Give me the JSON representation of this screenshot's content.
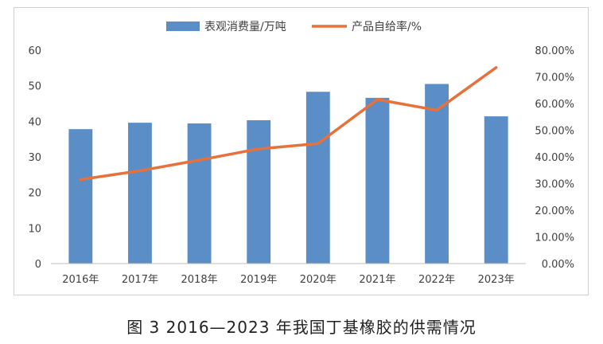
{
  "chart_data": {
    "type": "bar+line",
    "categories": [
      "2016年",
      "2017年",
      "2018年",
      "2019年",
      "2020年",
      "2021年",
      "2022年",
      "2023年"
    ],
    "series": [
      {
        "name": "表观消费量/万吨",
        "type": "bar",
        "axis": "left",
        "color": "#5b8ec7",
        "values": [
          37.8,
          39.6,
          39.4,
          40.3,
          48.3,
          46.6,
          50.5,
          41.4
        ]
      },
      {
        "name": "产品自给率/%",
        "type": "line",
        "axis": "right",
        "color": "#e8703a",
        "values": [
          31.5,
          34.8,
          38.8,
          43.0,
          45.0,
          61.5,
          57.5,
          73.5
        ]
      }
    ],
    "y_left": {
      "min": 0,
      "max": 60,
      "step": 10,
      "ticks": [
        "0",
        "10",
        "20",
        "30",
        "40",
        "50",
        "60"
      ]
    },
    "y_right": {
      "min": 0,
      "max": 80,
      "step": 10,
      "ticks": [
        "0.00%",
        "10.00%",
        "20.00%",
        "30.00%",
        "40.00%",
        "50.00%",
        "60.00%",
        "70.00%",
        "80.00%"
      ]
    },
    "legend_position": "top",
    "grid": false
  },
  "caption": "图 3  2016—2023 年我国丁基橡胶的供需情况"
}
